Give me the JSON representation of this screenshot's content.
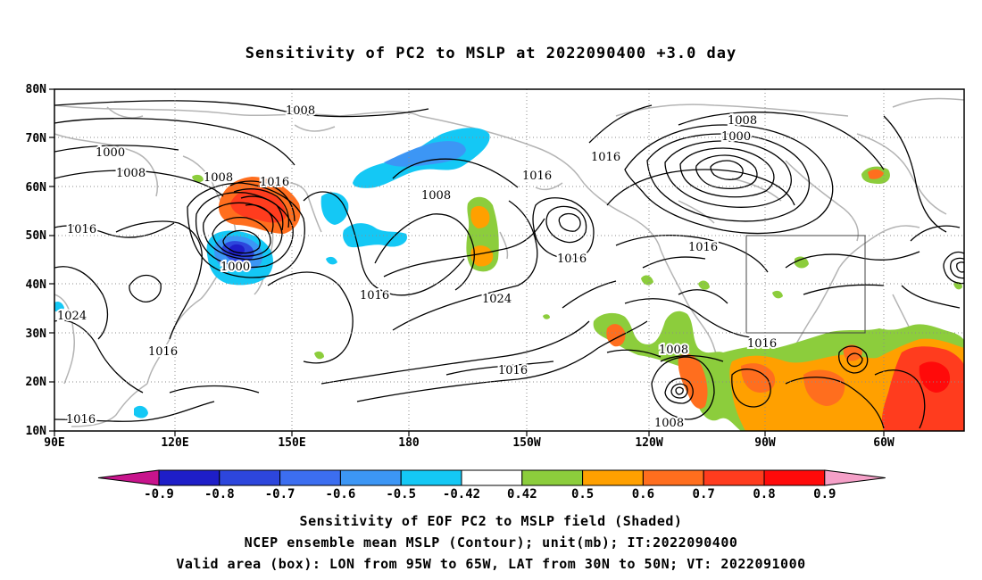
{
  "title": "Sensitivity of PC2 to MSLP at 2022090400 +3.0 day",
  "map": {
    "lat_labels": [
      "80N",
      "70N",
      "60N",
      "50N",
      "40N",
      "30N",
      "20N",
      "10N"
    ],
    "lon_labels": [
      "90E",
      "120E",
      "150E",
      "180",
      "150W",
      "120W",
      "90W",
      "60W"
    ],
    "contour_labels": [
      "1008",
      "1000",
      "1008",
      "1008",
      "1016",
      "1016",
      "1008",
      "1016",
      "1000",
      "1016",
      "1024",
      "1016",
      "1016",
      "1016",
      "1008",
      "1000",
      "1016",
      "1016",
      "1016",
      "1008",
      "1008",
      "1016",
      "1024"
    ],
    "box_label": "Valid area box",
    "colors": {
      "coast": "#b4b4b4",
      "contour": "#000000"
    }
  },
  "colorbar": {
    "ticks": [
      "-0.9",
      "-0.8",
      "-0.7",
      "-0.6",
      "-0.5",
      "-0.42",
      "0.42",
      "0.5",
      "0.6",
      "0.7",
      "0.8",
      "0.9"
    ],
    "colors": [
      "#c8148c",
      "#1e1ec8",
      "#2d46dc",
      "#3c6ef0",
      "#3c96f5",
      "#14c8f5",
      "#ffffff",
      "#8ccd3c",
      "#ffa000",
      "#ff6e1e",
      "#ff3c1e",
      "#ff0a0a",
      "#f5a0c8"
    ]
  },
  "captions": [
    "Sensitivity of EOF PC2 to MSLP field (Shaded)",
    "NCEP ensemble mean MSLP (Contour); unit(mb); IT:2022090400",
    "Valid area (box): LON from 95W to 65W, LAT from 30N to 50N; VT: 2022091000"
  ]
}
